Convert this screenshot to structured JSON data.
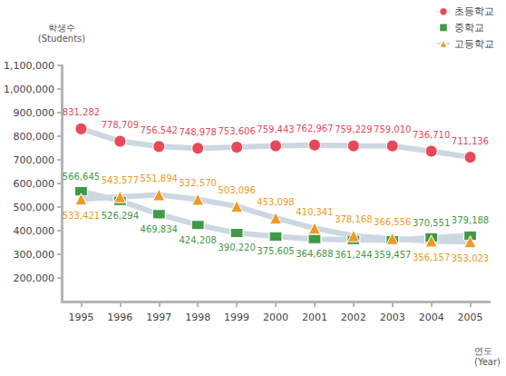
{
  "chart_data": {
    "type": "line",
    "y_label": "학생수\n(Students)",
    "x_label": "연도\n(Year)",
    "categories": [
      "1995",
      "1996",
      "1997",
      "1998",
      "1999",
      "2000",
      "2001",
      "2002",
      "2003",
      "2004",
      "2005"
    ],
    "series": [
      {
        "name": "초등학교",
        "color": "#e8495a",
        "marker": "circle",
        "values": [
          831282,
          778709,
          756542,
          748978,
          753606,
          759443,
          762967,
          759229,
          759010,
          736710,
          711136
        ],
        "value_labels": [
          "831,282",
          "778,709",
          "756,542",
          "748,978",
          "753,606",
          "759,443",
          "762,967",
          "759,229",
          "759,010",
          "736,710",
          "711,136"
        ]
      },
      {
        "name": "중학교",
        "color": "#3f9a46",
        "marker": "rect",
        "values": [
          566645,
          526294,
          469834,
          424208,
          390220,
          375605,
          364688,
          361244,
          359457,
          370551,
          379188
        ],
        "value_labels": [
          "566,645",
          "526,294",
          "469,834",
          "424,208",
          "390,220",
          "375,605",
          "364,688",
          "361,244",
          "359,457",
          "370,551",
          "379,188"
        ]
      },
      {
        "name": "고등학교",
        "color": "#ee9a22",
        "marker": "triangle",
        "values": [
          533421,
          543577,
          551894,
          532570,
          503096,
          453098,
          410341,
          378168,
          366556,
          356157,
          353023
        ],
        "value_labels": [
          "533,421",
          "543,577",
          "551,894",
          "532,570",
          "503,096",
          "453,098",
          "410,341",
          "378,168",
          "366,556",
          "356,157",
          "353,023"
        ]
      }
    ],
    "ylim": [
      100000,
      1100000
    ],
    "yticks": [
      {
        "value": 200000,
        "label": "200,000"
      },
      {
        "value": 300000,
        "label": "300,000"
      },
      {
        "value": 400000,
        "label": "400,000"
      },
      {
        "value": 500000,
        "label": "500,000"
      },
      {
        "value": 600000,
        "label": "600,000"
      },
      {
        "value": 700000,
        "label": "700,000"
      },
      {
        "value": 800000,
        "label": "800,000"
      },
      {
        "value": 900000,
        "label": "900,000"
      },
      {
        "value": 1000000,
        "label": "1,000,000"
      },
      {
        "value": 1100000,
        "label": "1,100,000"
      }
    ],
    "grid": false,
    "legend": "top-right",
    "data_labels": true
  }
}
